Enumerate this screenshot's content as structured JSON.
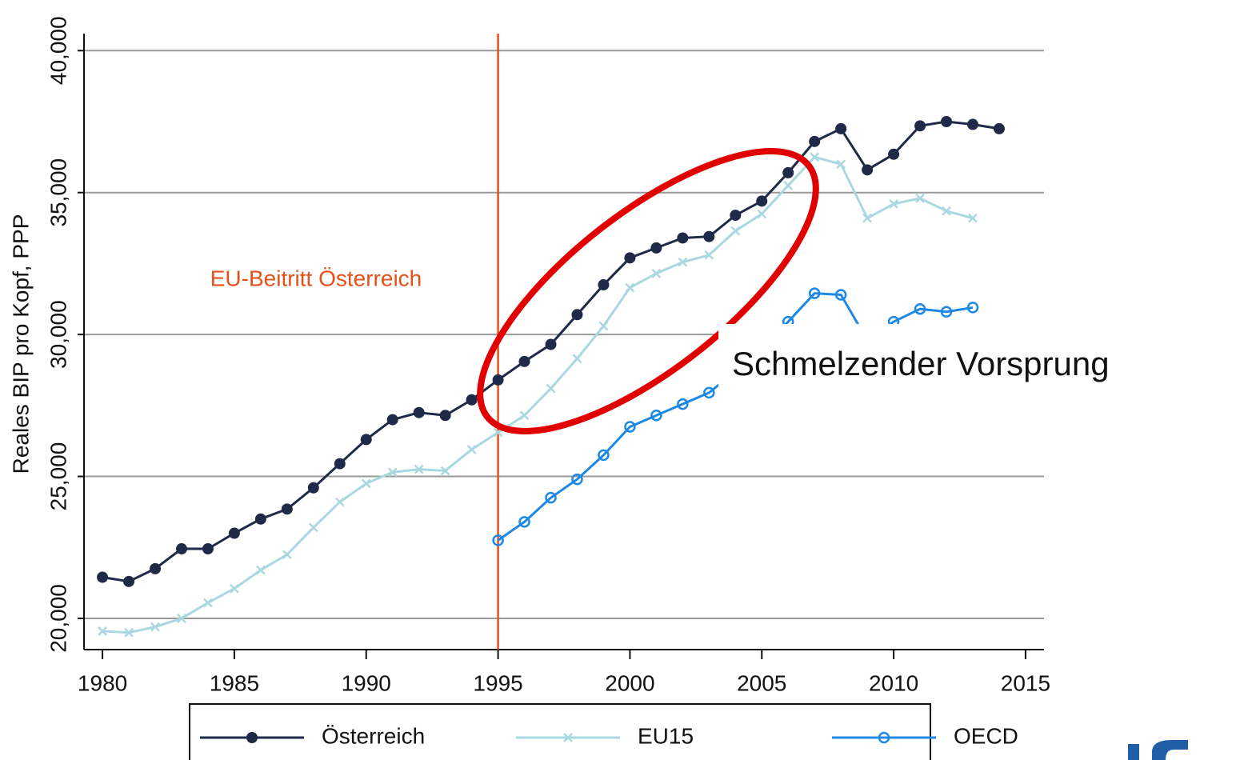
{
  "chart_data": {
    "type": "line",
    "y_label": "Reales BIP pro Kopf, PPP",
    "annotations": {
      "vline_label": "EU-Beitritt Österreich",
      "callout": "Schmelzender Vorsprung"
    },
    "vline": 1995,
    "vline_color": "#e8501a",
    "x": [
      1980,
      1981,
      1982,
      1983,
      1984,
      1985,
      1986,
      1987,
      1988,
      1989,
      1990,
      1991,
      1992,
      1993,
      1994,
      1995,
      1996,
      1997,
      1998,
      1999,
      2000,
      2001,
      2002,
      2003,
      2004,
      2005,
      2006,
      2007,
      2008,
      2009,
      2010,
      2011,
      2012,
      2013,
      2014
    ],
    "series": [
      {
        "name": "Österreich",
        "color": "#1f2a48",
        "marker": "dot",
        "values": [
          21450,
          21300,
          21750,
          22450,
          22450,
          23000,
          23500,
          23850,
          24600,
          25450,
          26300,
          27000,
          27250,
          27150,
          27700,
          28400,
          29050,
          29650,
          30700,
          31750,
          32700,
          33050,
          33400,
          33450,
          34200,
          34700,
          35700,
          36800,
          37250,
          35800,
          36350,
          37350,
          37500,
          37400,
          37250
        ]
      },
      {
        "name": "EU15",
        "color": "#a9d8e0",
        "marker": "x",
        "values": [
          19550,
          19500,
          19700,
          20000,
          20550,
          21050,
          21700,
          22250,
          23200,
          24100,
          24750,
          25150,
          25250,
          25200,
          25950,
          26550,
          27150,
          28100,
          29150,
          30300,
          31650,
          32150,
          32550,
          32800,
          33650,
          34250,
          35250,
          36250,
          36000,
          34100,
          34600,
          34800,
          34350,
          34100,
          null
        ]
      },
      {
        "name": "OECD",
        "color": "#1e88e5",
        "marker": "circle",
        "values": [
          null,
          null,
          null,
          null,
          null,
          null,
          null,
          null,
          null,
          null,
          null,
          null,
          null,
          null,
          null,
          22750,
          23400,
          24250,
          24900,
          25750,
          26750,
          27150,
          27550,
          27950,
          28700,
          29500,
          30450,
          31450,
          31400,
          29800,
          30450,
          30900,
          30800,
          30950,
          null
        ]
      }
    ],
    "xlim": [
      1979.3,
      2015.7
    ],
    "xticks": [
      1980,
      1985,
      1990,
      1995,
      2000,
      2005,
      2010,
      2015
    ],
    "ylim": [
      18900,
      40600
    ],
    "yticks": [
      {
        "value": 20000,
        "label": "20,000"
      },
      {
        "value": 25000,
        "label": "25,000"
      },
      {
        "value": 30000,
        "label": "30,000"
      },
      {
        "value": 35000,
        "label": "35,000"
      },
      {
        "value": 40000,
        "label": "40,000"
      }
    ],
    "grid": true
  }
}
